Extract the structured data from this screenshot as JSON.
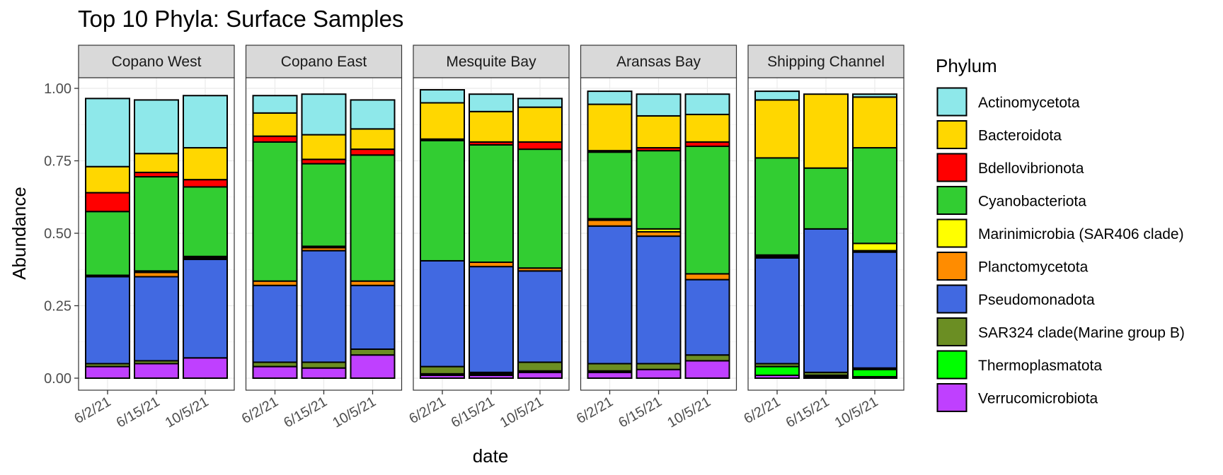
{
  "chart_data": {
    "type": "bar",
    "stacked": true,
    "title": "Top 10 Phyla: Surface Samples",
    "xlabel": "date",
    "ylabel": "Abundance",
    "ylim": [
      0,
      1.1
    ],
    "y_ticks": [
      "0.00",
      "0.25",
      "0.50",
      "0.75",
      "1.00"
    ],
    "y_tick_values": [
      0,
      0.25,
      0.5,
      0.75,
      1.0
    ],
    "grid": true,
    "legend_position": "right",
    "legend_title": "Phylum",
    "phyla": [
      {
        "name": "Actinomycetota",
        "color": "#8EE8EA"
      },
      {
        "name": "Bacteroidota",
        "color": "#FFD700"
      },
      {
        "name": "Bdellovibrionota",
        "color": "#FF0000"
      },
      {
        "name": "Cyanobacteriota",
        "color": "#32CD32"
      },
      {
        "name": "Marinimicrobia (SAR406 clade)",
        "color": "#FFFF00"
      },
      {
        "name": "Planctomycetota",
        "color": "#FF8C00"
      },
      {
        "name": "Pseudomonadota",
        "color": "#4169E1"
      },
      {
        "name": "SAR324 clade(Marine group B)",
        "color": "#6B8E23"
      },
      {
        "name": "Thermoplasmatota",
        "color": "#00FF00"
      },
      {
        "name": "Verrucomicrobiota",
        "color": "#BF40FF"
      }
    ],
    "stack_order_bottom_to_top": [
      "Verrucomicrobiota",
      "Thermoplasmatota",
      "SAR324 clade(Marine group B)",
      "Pseudomonadota",
      "Planctomycetota",
      "Marinimicrobia (SAR406 clade)",
      "Cyanobacteriota",
      "Bdellovibrionota",
      "Bacteroidota",
      "Actinomycetota"
    ],
    "panels": [
      {
        "name": "Copano West",
        "bars": [
          {
            "date": "6/2/21",
            "values": {
              "Verrucomicrobiota": 0.04,
              "Thermoplasmatota": 0.0,
              "SAR324 clade(Marine group B)": 0.01,
              "Pseudomonadota": 0.3,
              "Planctomycetota": 0.005,
              "Marinimicrobia (SAR406 clade)": 0.0,
              "Cyanobacteriota": 0.22,
              "Bdellovibrionota": 0.065,
              "Bacteroidota": 0.09,
              "Actinomycetota": 0.235
            }
          },
          {
            "date": "6/15/21",
            "values": {
              "Verrucomicrobiota": 0.05,
              "Thermoplasmatota": 0.0,
              "SAR324 clade(Marine group B)": 0.01,
              "Pseudomonadota": 0.29,
              "Planctomycetota": 0.015,
              "Marinimicrobia (SAR406 clade)": 0.005,
              "Cyanobacteriota": 0.325,
              "Bdellovibrionota": 0.015,
              "Bacteroidota": 0.065,
              "Actinomycetota": 0.185
            }
          },
          {
            "date": "10/5/21",
            "values": {
              "Verrucomicrobiota": 0.07,
              "Thermoplasmatota": 0.0,
              "SAR324 clade(Marine group B)": 0.0,
              "Pseudomonadota": 0.34,
              "Planctomycetota": 0.005,
              "Marinimicrobia (SAR406 clade)": 0.005,
              "Cyanobacteriota": 0.24,
              "Bdellovibrionota": 0.025,
              "Bacteroidota": 0.11,
              "Actinomycetota": 0.18
            }
          }
        ]
      },
      {
        "name": "Copano East",
        "bars": [
          {
            "date": "6/2/21",
            "values": {
              "Verrucomicrobiota": 0.04,
              "Thermoplasmatota": 0.0,
              "SAR324 clade(Marine group B)": 0.015,
              "Pseudomonadota": 0.265,
              "Planctomycetota": 0.015,
              "Marinimicrobia (SAR406 clade)": 0.0,
              "Cyanobacteriota": 0.48,
              "Bdellovibrionota": 0.02,
              "Bacteroidota": 0.08,
              "Actinomycetota": 0.06
            }
          },
          {
            "date": "6/15/21",
            "values": {
              "Verrucomicrobiota": 0.035,
              "Thermoplasmatota": 0.0,
              "SAR324 clade(Marine group B)": 0.02,
              "Pseudomonadota": 0.385,
              "Planctomycetota": 0.01,
              "Marinimicrobia (SAR406 clade)": 0.005,
              "Cyanobacteriota": 0.285,
              "Bdellovibrionota": 0.015,
              "Bacteroidota": 0.085,
              "Actinomycetota": 0.14
            }
          },
          {
            "date": "10/5/21",
            "values": {
              "Verrucomicrobiota": 0.08,
              "Thermoplasmatota": 0.0,
              "SAR324 clade(Marine group B)": 0.02,
              "Pseudomonadota": 0.22,
              "Planctomycetota": 0.015,
              "Marinimicrobia (SAR406 clade)": 0.0,
              "Cyanobacteriota": 0.435,
              "Bdellovibrionota": 0.02,
              "Bacteroidota": 0.07,
              "Actinomycetota": 0.1
            }
          }
        ]
      },
      {
        "name": "Mesquite Bay",
        "bars": [
          {
            "date": "6/2/21",
            "values": {
              "Verrucomicrobiota": 0.01,
              "Thermoplasmatota": 0.005,
              "SAR324 clade(Marine group B)": 0.025,
              "Pseudomonadota": 0.365,
              "Planctomycetota": 0.0,
              "Marinimicrobia (SAR406 clade)": 0.0,
              "Cyanobacteriota": 0.415,
              "Bdellovibrionota": 0.005,
              "Bacteroidota": 0.125,
              "Actinomycetota": 0.045
            }
          },
          {
            "date": "6/15/21",
            "values": {
              "Verrucomicrobiota": 0.01,
              "Thermoplasmatota": 0.005,
              "SAR324 clade(Marine group B)": 0.005,
              "Pseudomonadota": 0.365,
              "Planctomycetota": 0.015,
              "Marinimicrobia (SAR406 clade)": 0.0,
              "Cyanobacteriota": 0.405,
              "Bdellovibrionota": 0.01,
              "Bacteroidota": 0.105,
              "Actinomycetota": 0.06
            }
          },
          {
            "date": "10/5/21",
            "values": {
              "Verrucomicrobiota": 0.02,
              "Thermoplasmatota": 0.005,
              "SAR324 clade(Marine group B)": 0.03,
              "Pseudomonadota": 0.315,
              "Planctomycetota": 0.01,
              "Marinimicrobia (SAR406 clade)": 0.0,
              "Cyanobacteriota": 0.41,
              "Bdellovibrionota": 0.025,
              "Bacteroidota": 0.12,
              "Actinomycetota": 0.03
            }
          }
        ]
      },
      {
        "name": "Aransas Bay",
        "bars": [
          {
            "date": "6/2/21",
            "values": {
              "Verrucomicrobiota": 0.02,
              "Thermoplasmatota": 0.005,
              "SAR324 clade(Marine group B)": 0.025,
              "Pseudomonadota": 0.475,
              "Planctomycetota": 0.02,
              "Marinimicrobia (SAR406 clade)": 0.005,
              "Cyanobacteriota": 0.23,
              "Bdellovibrionota": 0.005,
              "Bacteroidota": 0.16,
              "Actinomycetota": 0.045
            }
          },
          {
            "date": "6/15/21",
            "values": {
              "Verrucomicrobiota": 0.03,
              "Thermoplasmatota": 0.0,
              "SAR324 clade(Marine group B)": 0.02,
              "Pseudomonadota": 0.44,
              "Planctomycetota": 0.015,
              "Marinimicrobia (SAR406 clade)": 0.01,
              "Cyanobacteriota": 0.27,
              "Bdellovibrionota": 0.01,
              "Bacteroidota": 0.11,
              "Actinomycetota": 0.075
            }
          },
          {
            "date": "10/5/21",
            "values": {
              "Verrucomicrobiota": 0.06,
              "Thermoplasmatota": 0.0,
              "SAR324 clade(Marine group B)": 0.02,
              "Pseudomonadota": 0.26,
              "Planctomycetota": 0.02,
              "Marinimicrobia (SAR406 clade)": 0.0,
              "Cyanobacteriota": 0.44,
              "Bdellovibrionota": 0.015,
              "Bacteroidota": 0.095,
              "Actinomycetota": 0.07
            }
          }
        ]
      },
      {
        "name": "Shipping Channel",
        "bars": [
          {
            "date": "6/2/21",
            "values": {
              "Verrucomicrobiota": 0.01,
              "Thermoplasmatota": 0.03,
              "SAR324 clade(Marine group B)": 0.01,
              "Pseudomonadota": 0.365,
              "Planctomycetota": 0.005,
              "Marinimicrobia (SAR406 clade)": 0.005,
              "Cyanobacteriota": 0.335,
              "Bdellovibrionota": 0.0,
              "Bacteroidota": 0.2,
              "Actinomycetota": 0.03
            }
          },
          {
            "date": "6/15/21",
            "values": {
              "Verrucomicrobiota": 0.005,
              "Thermoplasmatota": 0.005,
              "SAR324 clade(Marine group B)": 0.01,
              "Pseudomonadota": 0.495,
              "Planctomycetota": 0.0,
              "Marinimicrobia (SAR406 clade)": 0.0,
              "Cyanobacteriota": 0.21,
              "Bdellovibrionota": 0.0,
              "Bacteroidota": 0.255,
              "Actinomycetota": 0.0
            }
          },
          {
            "date": "10/5/21",
            "values": {
              "Verrucomicrobiota": 0.005,
              "Thermoplasmatota": 0.025,
              "SAR324 clade(Marine group B)": 0.005,
              "Pseudomonadota": 0.4,
              "Planctomycetota": 0.005,
              "Marinimicrobia (SAR406 clade)": 0.025,
              "Cyanobacteriota": 0.33,
              "Bdellovibrionota": 0.0,
              "Bacteroidota": 0.175,
              "Actinomycetota": 0.01
            }
          }
        ]
      }
    ]
  }
}
